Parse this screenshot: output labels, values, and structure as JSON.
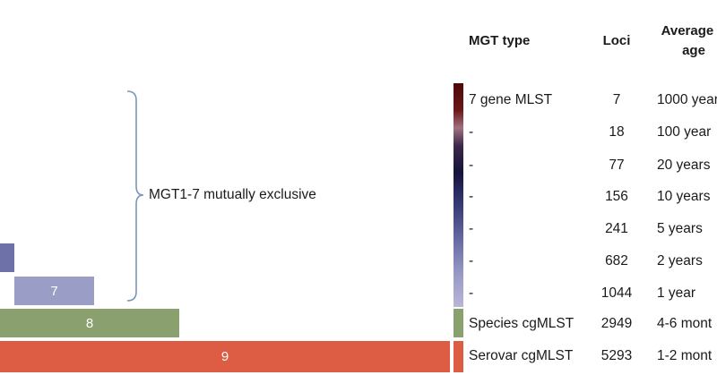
{
  "headers": {
    "type": "MGT type",
    "loci": "Loci",
    "age": "Average S\nage"
  },
  "bars": [
    {
      "label": "7",
      "color": "#9a9dc6"
    },
    {
      "label": "8",
      "color": "#8aa06e"
    },
    {
      "label": "9",
      "color": "#dd5c44"
    },
    {
      "label": "",
      "color": "#6e70a8"
    }
  ],
  "bracket_label": "MGT1-7 mutually exclusive",
  "rows": [
    {
      "type": "7 gene MLST",
      "loci": "7",
      "age": "1000 year"
    },
    {
      "type": "-",
      "loci": "18",
      "age": "100 year"
    },
    {
      "type": "-",
      "loci": "77",
      "age": "20 years"
    },
    {
      "type": "-",
      "loci": "156",
      "age": "10 years"
    },
    {
      "type": "-",
      "loci": "241",
      "age": "5 years"
    },
    {
      "type": "-",
      "loci": "682",
      "age": "2 years"
    },
    {
      "type": "-",
      "loci": "1044",
      "age": "1 year"
    },
    {
      "type": "Species cgMLST",
      "loci": "2949",
      "age": "4-6 mont"
    },
    {
      "type": "Serovar cgMLST",
      "loci": "5293",
      "age": "1-2 mont"
    }
  ],
  "colors": {
    "gradient_top": "#5a1010",
    "gradient_mid": "#1a1a4a",
    "gradient_bottom": "#b4b2d4",
    "species": "#8aa06e",
    "serovar": "#dd5c44"
  }
}
